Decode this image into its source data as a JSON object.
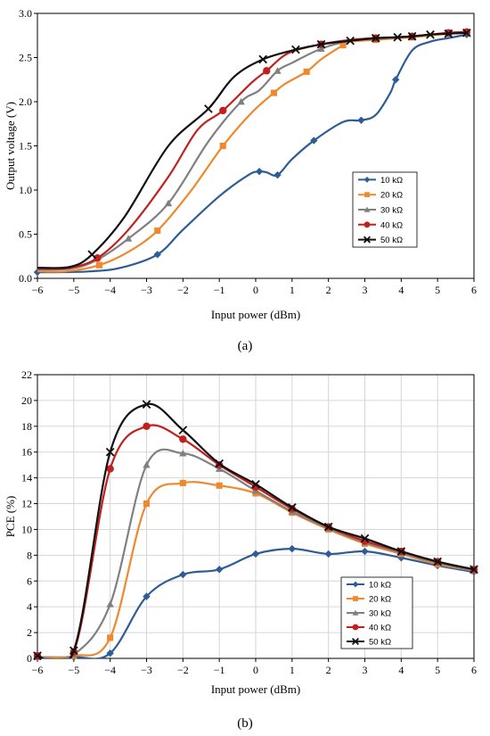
{
  "chart_data": [
    {
      "type": "line",
      "panel_label": "(a)",
      "xlabel": "Input power (dBm)",
      "ylabel": "Output  voltage (V)",
      "xlim": [
        -6,
        6
      ],
      "ylim": [
        0,
        3
      ],
      "xticks": [
        -6,
        -5,
        -4,
        -3,
        -2,
        -1,
        0,
        1,
        2,
        3,
        4,
        5,
        6
      ],
      "yticks": [
        0,
        0.5,
        1,
        1.5,
        2,
        2.5,
        3
      ],
      "ytick_labels": [
        "0.0",
        "0.5",
        "1.0",
        "1.5",
        "2.0",
        "2.5",
        "3.0"
      ],
      "grid": false,
      "legend_position": "right",
      "series": [
        {
          "name": "10 kΩ",
          "color": "#2e5d96",
          "marker": "diamond",
          "points": [
            [
              -6,
              0.07
            ],
            [
              -5.3,
              0.07
            ],
            [
              -4.5,
              0.08
            ],
            [
              -3.7,
              0.12
            ],
            [
              -2.7,
              0.27
            ],
            [
              -2.0,
              0.55
            ],
            [
              -1.0,
              0.93
            ],
            [
              -0.2,
              1.17
            ],
            [
              0.1,
              1.21
            ],
            [
              0.3,
              1.2
            ],
            [
              0.6,
              1.17
            ],
            [
              1.0,
              1.35
            ],
            [
              1.6,
              1.56
            ],
            [
              2.4,
              1.77
            ],
            [
              2.9,
              1.79
            ],
            [
              3.3,
              1.85
            ],
            [
              3.7,
              2.1
            ],
            [
              3.85,
              2.25
            ],
            [
              4.3,
              2.58
            ],
            [
              4.8,
              2.68
            ],
            [
              5.3,
              2.72
            ],
            [
              5.8,
              2.76
            ]
          ]
        },
        {
          "name": "20 kΩ",
          "color": "#f0882e",
          "marker": "square",
          "points": [
            [
              -6,
              0.08
            ],
            [
              -5.2,
              0.08
            ],
            [
              -4.3,
              0.15
            ],
            [
              -3.5,
              0.3
            ],
            [
              -2.7,
              0.54
            ],
            [
              -1.8,
              0.98
            ],
            [
              -0.9,
              1.5
            ],
            [
              -0.1,
              1.88
            ],
            [
              0.5,
              2.1
            ],
            [
              0.8,
              2.2
            ],
            [
              1.4,
              2.34
            ],
            [
              1.8,
              2.48
            ],
            [
              2.4,
              2.64
            ],
            [
              2.6,
              2.68
            ],
            [
              3.3,
              2.7
            ],
            [
              3.9,
              2.72
            ],
            [
              4.3,
              2.73
            ],
            [
              4.8,
              2.75
            ],
            [
              5.3,
              2.77
            ],
            [
              5.8,
              2.78
            ]
          ]
        },
        {
          "name": "30 kΩ",
          "color": "#808080",
          "marker": "triangle",
          "points": [
            [
              -6,
              0.1
            ],
            [
              -5.1,
              0.11
            ],
            [
              -4.4,
              0.2
            ],
            [
              -3.5,
              0.45
            ],
            [
              -2.4,
              0.85
            ],
            [
              -1.3,
              1.55
            ],
            [
              -0.4,
              2.0
            ],
            [
              0.1,
              2.13
            ],
            [
              0.6,
              2.35
            ],
            [
              1.0,
              2.44
            ],
            [
              1.8,
              2.6
            ],
            [
              2.6,
              2.69
            ],
            [
              3.3,
              2.71
            ],
            [
              3.9,
              2.73
            ],
            [
              4.3,
              2.74
            ],
            [
              4.8,
              2.76
            ],
            [
              5.3,
              2.78
            ],
            [
              5.8,
              2.79
            ]
          ]
        },
        {
          "name": "40 kΩ",
          "color": "#c2201f",
          "marker": "circle",
          "points": [
            [
              -6,
              0.11
            ],
            [
              -5.1,
              0.12
            ],
            [
              -4.35,
              0.23
            ],
            [
              -3.5,
              0.55
            ],
            [
              -2.4,
              1.15
            ],
            [
              -1.6,
              1.68
            ],
            [
              -0.9,
              1.9
            ],
            [
              -0.1,
              2.22
            ],
            [
              0.3,
              2.35
            ],
            [
              0.9,
              2.55
            ],
            [
              1.8,
              2.65
            ],
            [
              2.6,
              2.7
            ],
            [
              3.3,
              2.72
            ],
            [
              3.9,
              2.73
            ],
            [
              4.3,
              2.74
            ],
            [
              4.8,
              2.76
            ],
            [
              5.3,
              2.78
            ],
            [
              5.8,
              2.79
            ]
          ]
        },
        {
          "name": "50 kΩ",
          "color": "#111111",
          "marker": "x",
          "points": [
            [
              -6,
              0.12
            ],
            [
              -5.1,
              0.13
            ],
            [
              -4.5,
              0.27
            ],
            [
              -3.6,
              0.7
            ],
            [
              -2.4,
              1.5
            ],
            [
              -1.3,
              1.92
            ],
            [
              -0.6,
              2.28
            ],
            [
              0.2,
              2.48
            ],
            [
              1.1,
              2.59
            ],
            [
              1.8,
              2.65
            ],
            [
              2.6,
              2.69
            ],
            [
              3.3,
              2.72
            ],
            [
              3.9,
              2.73
            ],
            [
              4.3,
              2.74
            ],
            [
              4.8,
              2.76
            ],
            [
              5.3,
              2.77
            ],
            [
              5.8,
              2.78
            ]
          ]
        }
      ]
    },
    {
      "type": "line",
      "panel_label": "(b)",
      "xlabel": "Input power (dBm)",
      "ylabel": "PCE (%)",
      "xlim": [
        -6,
        6
      ],
      "ylim": [
        0,
        22
      ],
      "xticks": [
        -6,
        -5,
        -4,
        -3,
        -2,
        -1,
        0,
        1,
        2,
        3,
        4,
        5,
        6
      ],
      "yticks": [
        0,
        2,
        4,
        6,
        8,
        10,
        12,
        14,
        16,
        18,
        20,
        22
      ],
      "grid": true,
      "legend_position": "bottom-right",
      "series": [
        {
          "name": "10 kΩ",
          "color": "#2e5d96",
          "marker": "diamond",
          "values": [
            0.1,
            0.1,
            0.4,
            4.8,
            6.5,
            6.9,
            8.1,
            8.5,
            8.1,
            8.3,
            7.8,
            7.2,
            6.7
          ]
        },
        {
          "name": "20 kΩ",
          "color": "#f0882e",
          "marker": "square",
          "values": [
            0.1,
            0.2,
            1.6,
            12.0,
            13.6,
            13.4,
            12.8,
            11.3,
            10.0,
            8.9,
            8.1,
            7.3,
            6.8
          ]
        },
        {
          "name": "30 kΩ",
          "color": "#808080",
          "marker": "triangle",
          "values": [
            0.1,
            0.3,
            4.2,
            15.0,
            15.9,
            14.7,
            13.0,
            11.4,
            10.1,
            9.0,
            8.2,
            7.4,
            6.8
          ]
        },
        {
          "name": "40 kΩ",
          "color": "#c2201f",
          "marker": "circle",
          "values": [
            0.2,
            0.5,
            14.7,
            18.0,
            17.0,
            15.0,
            13.3,
            11.6,
            10.2,
            9.1,
            8.3,
            7.5,
            6.9
          ]
        },
        {
          "name": "50 kΩ",
          "color": "#111111",
          "marker": "x",
          "values": [
            0.2,
            0.6,
            16.0,
            19.7,
            17.7,
            15.1,
            13.5,
            11.7,
            10.2,
            9.3,
            8.3,
            7.5,
            6.9
          ]
        }
      ]
    }
  ]
}
